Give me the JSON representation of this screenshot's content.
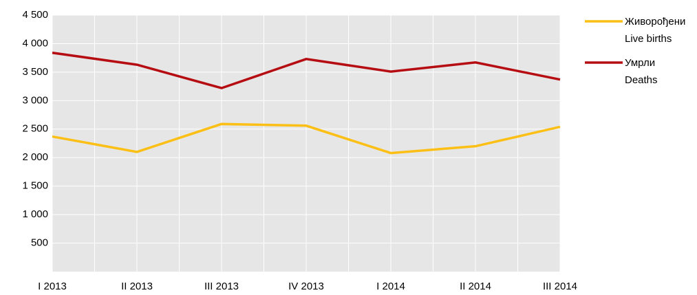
{
  "chart_data": {
    "type": "line",
    "categories": [
      "I 2013",
      "II 2013",
      "III 2013",
      "IV 2013",
      "I 2014",
      "II 2014",
      "III 2014"
    ],
    "series": [
      {
        "name": "Живорођени\nLive births",
        "color": "#fbbf16",
        "values": [
          2370,
          2100,
          2590,
          2560,
          2080,
          2200,
          2540
        ]
      },
      {
        "name": "Умрли\nDeaths",
        "color": "#b50d12",
        "values": [
          3840,
          3630,
          3220,
          3730,
          3510,
          3670,
          3370
        ]
      }
    ],
    "ylim": [
      0,
      4500
    ],
    "yticks": [
      500,
      {
        "value": 1000,
        "label": "1 000"
      },
      {
        "value": 1500,
        "label": "1 500"
      },
      {
        "value": 2000,
        "label": "2 000"
      },
      {
        "value": 2500,
        "label": "2 500"
      },
      {
        "value": 3000,
        "label": "3 000"
      },
      {
        "value": 3500,
        "label": "3 500"
      },
      {
        "value": 4000,
        "label": "4 000"
      },
      {
        "value": 4500,
        "label": "4 500"
      }
    ],
    "grid": true,
    "legend": "right"
  }
}
